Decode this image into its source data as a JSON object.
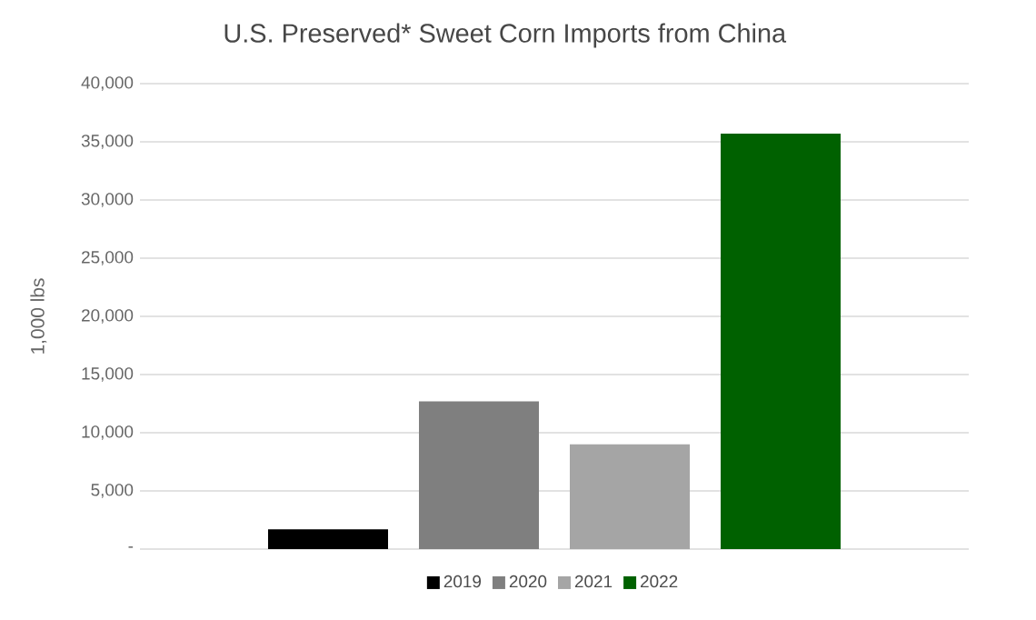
{
  "chart_data": {
    "type": "bar",
    "title": "U.S. Preserved* Sweet Corn Imports from China",
    "ylabel": "1,000 lbs",
    "categories": [
      null
    ],
    "series": [
      {
        "name": "2019",
        "color": "#000000",
        "values": [
          1700
        ]
      },
      {
        "name": "2020",
        "color": "#7f7f7f",
        "values": [
          12700
        ]
      },
      {
        "name": "2021",
        "color": "#a5a5a5",
        "values": [
          9000
        ]
      },
      {
        "name": "2022",
        "color": "#006100",
        "values": [
          35700
        ]
      }
    ],
    "ylim": [
      0,
      40000
    ],
    "yticks": [
      {
        "value": 0,
        "label": "-"
      },
      {
        "value": 5000,
        "label": "5,000"
      },
      {
        "value": 10000,
        "label": "10,000"
      },
      {
        "value": 15000,
        "label": "15,000"
      },
      {
        "value": 20000,
        "label": "20,000"
      },
      {
        "value": 25000,
        "label": "25,000"
      },
      {
        "value": 30000,
        "label": "30,000"
      },
      {
        "value": 35000,
        "label": "35,000"
      },
      {
        "value": 40000,
        "label": "40,000"
      }
    ],
    "grid": "y",
    "legend": "bottom"
  }
}
